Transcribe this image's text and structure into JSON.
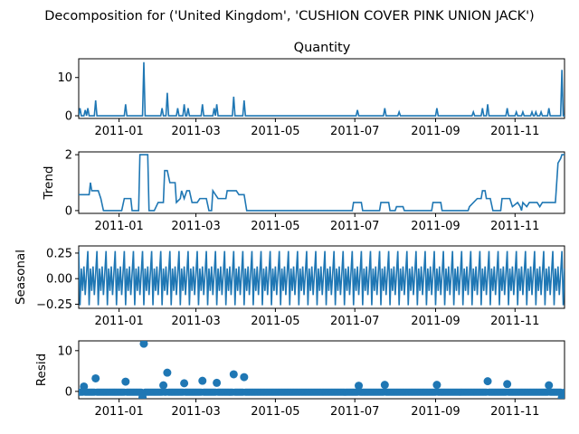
{
  "figure": {
    "suptitle": "Decomposition for ('United Kingdom', 'CUSHION COVER PINK UNION JACK')",
    "line_color": "#1f77b4",
    "x_ticks": [
      "2011-01",
      "2011-03",
      "2011-05",
      "2011-07",
      "2011-09",
      "2011-11"
    ]
  },
  "chart_data": [
    {
      "type": "line",
      "title": "Quantity",
      "ylabel": "",
      "ylim": [
        -0.7,
        14.9
      ],
      "yticks": [
        "0",
        "10"
      ],
      "x_start": "2010-12-01",
      "x_end": "2011-12-09",
      "spikes": [
        {
          "date": "2010-12-02",
          "value": 2
        },
        {
          "date": "2010-12-06",
          "value": 1.5
        },
        {
          "date": "2010-12-08",
          "value": 2
        },
        {
          "date": "2010-12-14",
          "value": 4
        },
        {
          "date": "2011-01-06",
          "value": 3
        },
        {
          "date": "2011-01-20",
          "value": 14
        },
        {
          "date": "2011-02-03",
          "value": 2
        },
        {
          "date": "2011-02-07",
          "value": 6
        },
        {
          "date": "2011-02-15",
          "value": 2
        },
        {
          "date": "2011-02-20",
          "value": 3
        },
        {
          "date": "2011-02-23",
          "value": 2
        },
        {
          "date": "2011-03-06",
          "value": 3
        },
        {
          "date": "2011-03-15",
          "value": 2
        },
        {
          "date": "2011-03-17",
          "value": 3
        },
        {
          "date": "2011-03-30",
          "value": 5
        },
        {
          "date": "2011-04-07",
          "value": 4
        },
        {
          "date": "2011-07-03",
          "value": 1.5
        },
        {
          "date": "2011-07-24",
          "value": 2
        },
        {
          "date": "2011-08-04",
          "value": 1
        },
        {
          "date": "2011-09-02",
          "value": 2
        },
        {
          "date": "2011-09-30",
          "value": 1
        },
        {
          "date": "2011-10-07",
          "value": 2
        },
        {
          "date": "2011-10-11",
          "value": 3
        },
        {
          "date": "2011-10-26",
          "value": 2
        },
        {
          "date": "2011-11-02",
          "value": 1
        },
        {
          "date": "2011-11-07",
          "value": 1
        },
        {
          "date": "2011-11-14",
          "value": 1
        },
        {
          "date": "2011-11-17",
          "value": 1
        },
        {
          "date": "2011-11-21",
          "value": 1
        },
        {
          "date": "2011-11-27",
          "value": 2
        },
        {
          "date": "2011-12-07",
          "value": 12
        }
      ]
    },
    {
      "type": "line",
      "title": "",
      "ylabel": "Trend",
      "ylim": [
        -0.1,
        2.1
      ],
      "yticks": [
        "0",
        "2"
      ],
      "points": [
        [
          "2010-12-01",
          0.57
        ],
        [
          "2010-12-09",
          0.57
        ],
        [
          "2010-12-10",
          1.0
        ],
        [
          "2010-12-11",
          0.71
        ],
        [
          "2010-12-16",
          0.71
        ],
        [
          "2010-12-18",
          0.43
        ],
        [
          "2010-12-20",
          0.0
        ],
        [
          "2011-01-03",
          0.0
        ],
        [
          "2011-01-05",
          0.43
        ],
        [
          "2011-01-10",
          0.43
        ],
        [
          "2011-01-11",
          0.0
        ],
        [
          "2011-01-16",
          0.0
        ],
        [
          "2011-01-17",
          2.0
        ],
        [
          "2011-01-23",
          2.0
        ],
        [
          "2011-01-24",
          0.0
        ],
        [
          "2011-01-28",
          0.0
        ],
        [
          "2011-01-31",
          0.29
        ],
        [
          "2011-02-04",
          0.29
        ],
        [
          "2011-02-05",
          1.43
        ],
        [
          "2011-02-07",
          1.43
        ],
        [
          "2011-02-09",
          1.0
        ],
        [
          "2011-02-13",
          1.0
        ],
        [
          "2011-02-14",
          0.29
        ],
        [
          "2011-02-17",
          0.43
        ],
        [
          "2011-02-18",
          0.71
        ],
        [
          "2011-02-20",
          0.43
        ],
        [
          "2011-02-22",
          0.71
        ],
        [
          "2011-02-24",
          0.71
        ],
        [
          "2011-02-26",
          0.29
        ],
        [
          "2011-03-02",
          0.29
        ],
        [
          "2011-03-04",
          0.43
        ],
        [
          "2011-03-09",
          0.43
        ],
        [
          "2011-03-11",
          0.0
        ],
        [
          "2011-03-13",
          0.0
        ],
        [
          "2011-03-14",
          0.71
        ],
        [
          "2011-03-16",
          0.57
        ],
        [
          "2011-03-18",
          0.43
        ],
        [
          "2011-03-24",
          0.43
        ],
        [
          "2011-03-25",
          0.71
        ],
        [
          "2011-04-01",
          0.71
        ],
        [
          "2011-04-03",
          0.57
        ],
        [
          "2011-04-07",
          0.57
        ],
        [
          "2011-04-09",
          0.0
        ],
        [
          "2011-06-29",
          0.0
        ],
        [
          "2011-06-30",
          0.29
        ],
        [
          "2011-07-06",
          0.29
        ],
        [
          "2011-07-07",
          0.0
        ],
        [
          "2011-07-20",
          0.0
        ],
        [
          "2011-07-21",
          0.29
        ],
        [
          "2011-07-27",
          0.29
        ],
        [
          "2011-07-28",
          0.0
        ],
        [
          "2011-08-01",
          0.0
        ],
        [
          "2011-08-02",
          0.14
        ],
        [
          "2011-08-07",
          0.14
        ],
        [
          "2011-08-08",
          0.0
        ],
        [
          "2011-08-29",
          0.0
        ],
        [
          "2011-08-30",
          0.29
        ],
        [
          "2011-09-05",
          0.29
        ],
        [
          "2011-09-06",
          0.0
        ],
        [
          "2011-09-26",
          0.0
        ],
        [
          "2011-09-27",
          0.14
        ],
        [
          "2011-10-03",
          0.43
        ],
        [
          "2011-10-06",
          0.43
        ],
        [
          "2011-10-07",
          0.71
        ],
        [
          "2011-10-09",
          0.71
        ],
        [
          "2011-10-10",
          0.43
        ],
        [
          "2011-10-13",
          0.43
        ],
        [
          "2011-10-15",
          0.0
        ],
        [
          "2011-10-21",
          0.0
        ],
        [
          "2011-10-22",
          0.43
        ],
        [
          "2011-10-28",
          0.43
        ],
        [
          "2011-10-30",
          0.14
        ],
        [
          "2011-11-03",
          0.29
        ],
        [
          "2011-11-05",
          0.14
        ],
        [
          "2011-11-06",
          0.0
        ],
        [
          "2011-11-07",
          0.29
        ],
        [
          "2011-11-10",
          0.14
        ],
        [
          "2011-11-12",
          0.29
        ],
        [
          "2011-11-18",
          0.29
        ],
        [
          "2011-11-20",
          0.14
        ],
        [
          "2011-11-22",
          0.29
        ],
        [
          "2011-12-02",
          0.29
        ],
        [
          "2011-12-04",
          1.7
        ],
        [
          "2011-12-06",
          1.86
        ],
        [
          "2011-12-07",
          2.0
        ],
        [
          "2011-12-09",
          2.0
        ]
      ]
    },
    {
      "type": "line",
      "title": "",
      "ylabel": "Seasonal",
      "ylim": [
        -0.29,
        0.32
      ],
      "yticks": [
        "0.25",
        "0.00",
        "−0.25"
      ],
      "period_days": 7,
      "weekly_pattern": [
        0.27,
        -0.26,
        0.1,
        -0.12,
        0.12,
        -0.16,
        0.05
      ]
    },
    {
      "type": "scatter",
      "title": "",
      "ylabel": "Resid",
      "ylim": [
        -1.8,
        12.4
      ],
      "yticks": [
        "0",
        "10"
      ],
      "baseline_value": -0.2,
      "outliers": [
        {
          "date": "2010-12-05",
          "value": 1.2
        },
        {
          "date": "2010-12-14",
          "value": 3.2
        },
        {
          "date": "2011-01-06",
          "value": 2.4
        },
        {
          "date": "2011-01-20",
          "value": 11.7
        },
        {
          "date": "2011-02-04",
          "value": 1.5
        },
        {
          "date": "2011-02-07",
          "value": 4.6
        },
        {
          "date": "2011-02-20",
          "value": 2.0
        },
        {
          "date": "2011-03-06",
          "value": 2.6
        },
        {
          "date": "2011-03-17",
          "value": 2.1
        },
        {
          "date": "2011-03-30",
          "value": 4.2
        },
        {
          "date": "2011-04-07",
          "value": 3.5
        },
        {
          "date": "2011-07-04",
          "value": 1.4
        },
        {
          "date": "2011-07-24",
          "value": 1.6
        },
        {
          "date": "2011-09-02",
          "value": 1.6
        },
        {
          "date": "2011-10-11",
          "value": 2.5
        },
        {
          "date": "2011-10-26",
          "value": 1.8
        },
        {
          "date": "2011-11-27",
          "value": 1.5
        },
        {
          "date": "2011-01-19",
          "value": -1.4
        },
        {
          "date": "2011-12-07",
          "value": -1.5
        },
        {
          "date": "2011-12-08",
          "value": -1.4
        }
      ]
    }
  ]
}
